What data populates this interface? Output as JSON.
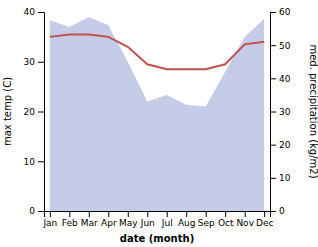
{
  "chart_data": {
    "type": "line",
    "categories": [
      "Jan",
      "Feb",
      "Mar",
      "Apr",
      "May",
      "Jun",
      "Jul",
      "Aug",
      "Sep",
      "Oct",
      "Nov",
      "Dec"
    ],
    "xlabel": "date (month)",
    "ylabel": "max temp (C)",
    "y2label": "med. precipitation (kg/m2)",
    "ylim": [
      0,
      40
    ],
    "yticks": [
      0,
      10,
      20,
      30,
      40
    ],
    "y2lim": [
      0,
      60
    ],
    "y2ticks": [
      0,
      10,
      20,
      30,
      40,
      50,
      60
    ],
    "series": [
      {
        "type": "area",
        "axis": "y2",
        "color": "#c5cce8",
        "values": [
          57.5,
          55.5,
          58.5,
          56.0,
          45.0,
          33.0,
          35.0,
          32.0,
          31.5,
          42.0,
          52.5,
          58.0
        ]
      },
      {
        "type": "line",
        "color": "#c0504d",
        "values": [
          35.0,
          35.5,
          35.5,
          35.0,
          33.0,
          29.5,
          28.5,
          28.5,
          28.5,
          29.5,
          33.5,
          34.0
        ]
      }
    ]
  }
}
